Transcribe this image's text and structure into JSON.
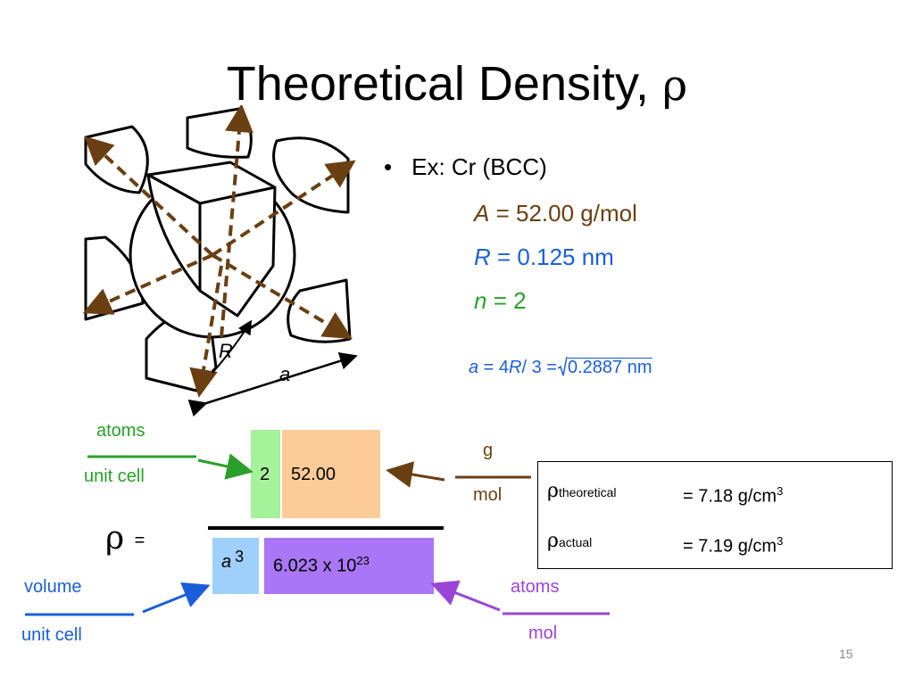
{
  "slide": {
    "title_text": "Theoretical Density, ",
    "title_symbol": "ρ",
    "page_number": "15"
  },
  "figure": {
    "label_R": "R",
    "label_a": "a"
  },
  "example": {
    "bullet": "•",
    "heading": "Ex: Cr (BCC)",
    "A_symbol": "A",
    "A_value": "= 52.00 g/mol",
    "R_symbol": "R",
    "R_value": "= 0.125 nm",
    "n_symbol": "n",
    "n_value": "= 2",
    "lattice_a": "a",
    "lattice_mid1": " = 4",
    "lattice_R": "R",
    "lattice_mid2": "/ 3 =",
    "lattice_value": "0.2887 nm"
  },
  "equation": {
    "rho_symbol": "ρ",
    "equals": "=",
    "n_value": "2",
    "A_value": "52.00",
    "a_symbol": "a",
    "a_exponent": "3",
    "avogadro_base": "6.023 x 10",
    "avogadro_exp": "23",
    "atoms_top": "atoms",
    "unit_cell_top": "unit cell",
    "g_label": "g",
    "mol_label": "mol",
    "volume_label": "volume",
    "unit_cell_bottom": "unit cell",
    "atoms_bottom": "atoms",
    "mol_bottom": "mol"
  },
  "results": {
    "rho_symbol": "ρ",
    "theoretical_sub": "theoretical",
    "theoretical_value": "= 7.18 g/cm",
    "actual_sub": "actual",
    "actual_value": "= 7.19 g/cm",
    "unit_exp": "3"
  },
  "colors": {
    "brown": "#6a3f12",
    "blue": "#1a5fd8",
    "green": "#2aa02a",
    "purple": "#9b45d8",
    "box_green": "#a5f29b",
    "box_orange": "#fdcb98",
    "box_blue": "#9fd0fb",
    "box_purple": "#a876f6"
  }
}
